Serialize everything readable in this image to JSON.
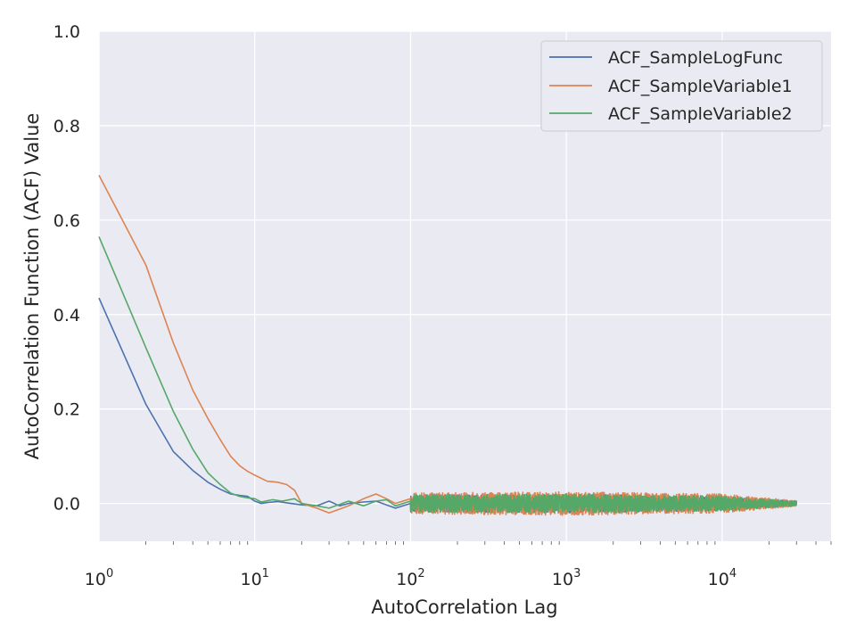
{
  "chart_data": {
    "type": "line",
    "title": "",
    "xlabel": "AutoCorrelation Lag",
    "ylabel": "AutoCorrelation Function (ACF) Value",
    "xscale": "log",
    "xlim": [
      1,
      50000
    ],
    "ylim": [
      -0.08,
      1.0
    ],
    "grid": true,
    "legend_position": "top-right",
    "x_ticks": [
      {
        "base": "10",
        "exp": "0"
      },
      {
        "base": "10",
        "exp": "1"
      },
      {
        "base": "10",
        "exp": "2"
      },
      {
        "base": "10",
        "exp": "3"
      },
      {
        "base": "10",
        "exp": "4"
      }
    ],
    "y_ticks": [
      "0.0",
      "0.2",
      "0.4",
      "0.6",
      "0.8",
      "1.0"
    ],
    "background_color": "#eaeaf2",
    "grid_color": "#ffffff",
    "series": [
      {
        "name": "ACF_SampleLogFunc",
        "color": "#4c72b0",
        "smooth_points": [
          [
            1,
            0.435
          ],
          [
            2,
            0.21
          ],
          [
            3,
            0.11
          ],
          [
            4,
            0.07
          ],
          [
            5,
            0.045
          ],
          [
            6,
            0.03
          ],
          [
            7,
            0.02
          ],
          [
            8,
            0.017
          ],
          [
            9,
            0.015
          ],
          [
            10,
            0.005
          ],
          [
            11,
            0.0
          ],
          [
            12,
            0.002
          ],
          [
            14,
            0.004
          ],
          [
            17,
            0.0
          ],
          [
            20,
            -0.003
          ],
          [
            25,
            -0.005
          ],
          [
            30,
            0.005
          ],
          [
            35,
            -0.005
          ],
          [
            40,
            0.0
          ],
          [
            50,
            0.003
          ],
          [
            60,
            0.005
          ],
          [
            70,
            -0.003
          ],
          [
            80,
            -0.01
          ],
          [
            100,
            0.0
          ]
        ],
        "noise_amplitude": [
          [
            100,
            0.018
          ],
          [
            1000,
            0.02
          ],
          [
            10000,
            0.015
          ],
          [
            30000,
            0.005
          ]
        ]
      },
      {
        "name": "ACF_SampleVariable1",
        "color": "#dd8452",
        "smooth_points": [
          [
            1,
            0.695
          ],
          [
            2,
            0.505
          ],
          [
            3,
            0.34
          ],
          [
            4,
            0.24
          ],
          [
            5,
            0.18
          ],
          [
            6,
            0.135
          ],
          [
            7,
            0.1
          ],
          [
            8,
            0.08
          ],
          [
            9,
            0.068
          ],
          [
            10,
            0.06
          ],
          [
            12,
            0.047
          ],
          [
            14,
            0.045
          ],
          [
            16,
            0.04
          ],
          [
            18,
            0.028
          ],
          [
            20,
            0.0
          ],
          [
            25,
            -0.01
          ],
          [
            30,
            -0.02
          ],
          [
            35,
            -0.012
          ],
          [
            40,
            -0.005
          ],
          [
            50,
            0.01
          ],
          [
            60,
            0.02
          ],
          [
            70,
            0.01
          ],
          [
            80,
            0.0
          ],
          [
            100,
            0.01
          ]
        ],
        "noise_amplitude": [
          [
            100,
            0.022
          ],
          [
            1000,
            0.025
          ],
          [
            10000,
            0.02
          ],
          [
            30000,
            0.006
          ]
        ]
      },
      {
        "name": "ACF_SampleVariable2",
        "color": "#55a868",
        "smooth_points": [
          [
            1,
            0.565
          ],
          [
            2,
            0.33
          ],
          [
            3,
            0.195
          ],
          [
            4,
            0.115
          ],
          [
            5,
            0.065
          ],
          [
            6,
            0.04
          ],
          [
            7,
            0.022
          ],
          [
            8,
            0.015
          ],
          [
            9,
            0.012
          ],
          [
            10,
            0.01
          ],
          [
            11,
            0.003
          ],
          [
            13,
            0.008
          ],
          [
            15,
            0.005
          ],
          [
            18,
            0.01
          ],
          [
            20,
            0.0
          ],
          [
            25,
            -0.005
          ],
          [
            30,
            -0.01
          ],
          [
            40,
            0.005
          ],
          [
            50,
            -0.005
          ],
          [
            60,
            0.005
          ],
          [
            70,
            0.008
          ],
          [
            80,
            -0.005
          ],
          [
            100,
            0.005
          ]
        ],
        "noise_amplitude": [
          [
            100,
            0.018
          ],
          [
            1000,
            0.02
          ],
          [
            10000,
            0.016
          ],
          [
            30000,
            0.005
          ]
        ]
      }
    ]
  }
}
